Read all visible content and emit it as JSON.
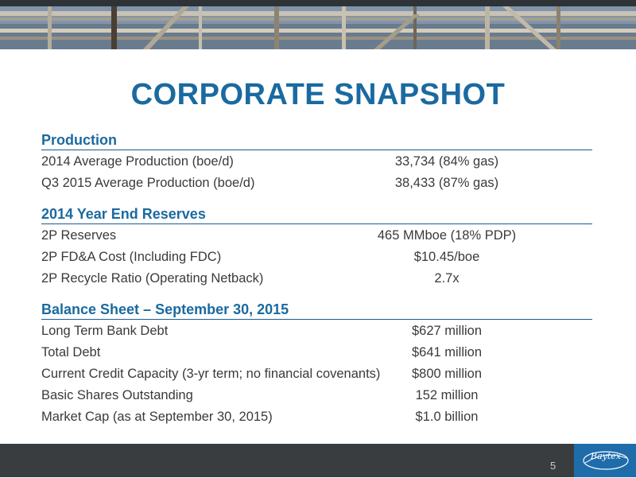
{
  "title": "CORPORATE SNAPSHOT",
  "sections": {
    "production": {
      "heading": "Production",
      "rows": [
        {
          "label": "2014 Average Production (boe/d)",
          "value": "33,734 (84% gas)"
        },
        {
          "label": "Q3 2015 Average Production (boe/d)",
          "value": "38,433 (87% gas)"
        }
      ]
    },
    "reserves": {
      "heading": "2014 Year End Reserves",
      "rows": [
        {
          "label": "2P Reserves",
          "value": "465 MMboe (18% PDP)"
        },
        {
          "label": "2P FD&A Cost (Including FDC)",
          "value": "$10.45/boe"
        },
        {
          "label": "2P Recycle Ratio (Operating Netback)",
          "value": "2.7x"
        }
      ]
    },
    "balance": {
      "heading": "Balance Sheet – September 30, 2015",
      "rows": [
        {
          "label": "Long Term Bank Debt",
          "value": "$627 million"
        },
        {
          "label": "Total Debt",
          "value": "$641 million"
        },
        {
          "label": "Current Credit Capacity (3-yr term; no financial covenants)",
          "value": "$800 million"
        },
        {
          "label": "Basic Shares Outstanding",
          "value": "152 million"
        },
        {
          "label": "Market Cap (as at September 30, 2015)",
          "value": "$1.0 billion"
        }
      ]
    }
  },
  "footer": {
    "page_number": "5",
    "logo_text": "Baytex"
  },
  "colors": {
    "accent": "#1a6aa0",
    "footer_dark": "#3a3d40",
    "footer_blue": "#1f6cab"
  }
}
